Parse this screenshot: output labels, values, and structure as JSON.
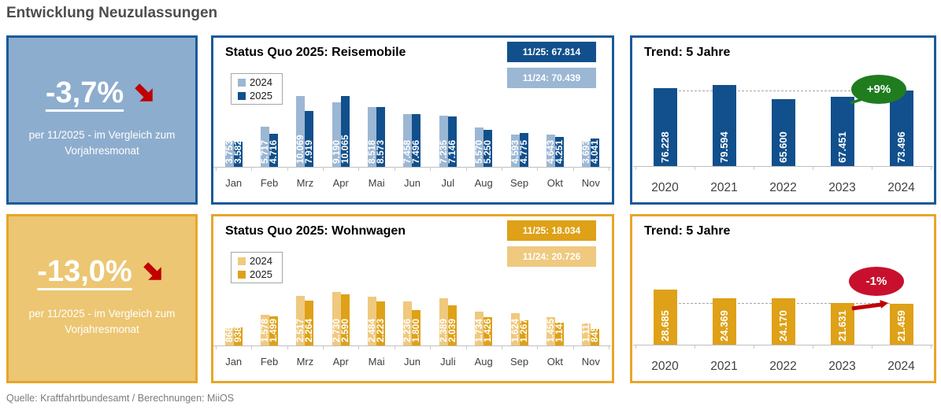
{
  "title": "Entwicklung Neuzulassungen",
  "footer": "Quelle: Kraftfahrtbundesamt / Berechnungen: MiiOS",
  "kpis": [
    {
      "value": "-3,7%",
      "caption": "per 11/2025 - im Vergleich zum Vorjahresmonat"
    },
    {
      "value": "-13,0%",
      "caption": "per 11/2025 - im Vergleich zum Vorjahresmonat"
    }
  ],
  "colors": {
    "blue_panel_border": "#1B5A99",
    "blue_kpi_bg": "#8DADCE",
    "blue_light": "#9BB7D4",
    "blue_dark": "#11508C",
    "gold_panel_border": "#E7A62A",
    "gold_kpi_bg": "#ECC672",
    "gold_light": "#EFC97E",
    "gold_dark": "#DEA117",
    "green": "#1F7C1F",
    "red": "#C8102E",
    "kpi_arrow_red": "#C00000",
    "axis_gray": "#BFBFBF",
    "title_gray": "#4D4D4D",
    "footer_gray": "#7C7C7C"
  },
  "chart_data": [
    {
      "id": "status-quo-reisemobile",
      "type": "bar",
      "title": "Status Quo 2025: Reisemobile",
      "badges": [
        "11/25: 67.814",
        "11/24: 70.439"
      ],
      "legend_position": "top-left",
      "categories": [
        "Jan",
        "Feb",
        "Mrz",
        "Apr",
        "Mai",
        "Jun",
        "Jul",
        "Aug",
        "Sep",
        "Okt",
        "Nov"
      ],
      "series": [
        {
          "name": "2024",
          "color": "#9BB7D4",
          "values": [
            3753,
            5717,
            10069,
            9190,
            8518,
            7458,
            7235,
            5570,
            4593,
            4643,
            3693
          ]
        },
        {
          "name": "2025",
          "color": "#11508C",
          "values": [
            3582,
            4716,
            7919,
            10065,
            8573,
            7496,
            7146,
            5250,
            4775,
            4251,
            4041
          ]
        }
      ],
      "ylim": [
        0,
        12000
      ]
    },
    {
      "id": "trend-reisemobile",
      "type": "bar",
      "title": "Trend: 5 Jahre",
      "categories": [
        "2020",
        "2021",
        "2022",
        "2023",
        "2024"
      ],
      "values": [
        76228,
        79594,
        65600,
        67451,
        73496
      ],
      "bar_color": "#11508C",
      "annotation": "+9%",
      "ylim": [
        0,
        90000
      ]
    },
    {
      "id": "status-quo-wohnwagen",
      "type": "bar",
      "title": "Status Quo 2025: Wohnwagen",
      "badges": [
        "11/25: 18.034",
        "11/24: 20.726"
      ],
      "legend_position": "top-left",
      "categories": [
        "Jan",
        "Feb",
        "Mrz",
        "Apr",
        "Mai",
        "Jun",
        "Juli",
        "Aug",
        "Sep",
        "Okt",
        "Nov"
      ],
      "series": [
        {
          "name": "2024",
          "color": "#EFC97E",
          "values": [
            868,
            1578,
            2517,
            2730,
            2484,
            2236,
            2389,
            1734,
            1624,
            1455,
            1111
          ]
        },
        {
          "name": "2025",
          "color": "#DEA117",
          "values": [
            938,
            1499,
            2264,
            2590,
            2223,
            1800,
            2039,
            1426,
            1267,
            1143,
            845
          ]
        }
      ],
      "ylim": [
        0,
        4000
      ]
    },
    {
      "id": "trend-wohnwagen",
      "type": "bar",
      "title": "Trend: 5 Jahre",
      "categories": [
        "2020",
        "2021",
        "2022",
        "2023",
        "2024"
      ],
      "values": [
        28685,
        24369,
        24170,
        21631,
        21459
      ],
      "bar_color": "#DEA117",
      "annotation": "-1%",
      "ylim": [
        0,
        35000
      ]
    }
  ]
}
